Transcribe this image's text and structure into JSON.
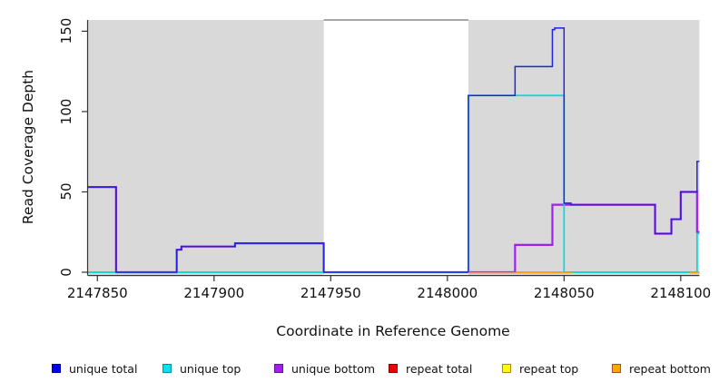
{
  "chart_data": {
    "type": "line",
    "subtype": "step-coverage-plot",
    "title": "",
    "xlabel": "Coordinate in Reference Genome",
    "ylabel": "Read Coverage Depth",
    "xlim": [
      2147846,
      2148108
    ],
    "ylim": [
      0,
      157
    ],
    "x_ticks": [
      2147850,
      2147900,
      2147950,
      2148000,
      2148050,
      2148100
    ],
    "y_ticks": [
      0,
      50,
      100,
      150
    ],
    "grid": false,
    "legend_position": "bottom",
    "plot_background": "#d9d9d9",
    "outer_background": "#ffffff",
    "axis_color": "#333333",
    "no_data_region": {
      "x_start": 2147947,
      "x_end": 2148009,
      "fill": "#ffffff",
      "top_line_color": "#8a8a8a"
    },
    "baseline": {
      "value": 0,
      "color": "#7dc87d"
    },
    "baseline_overlays": [
      {
        "color": "#e48a8a",
        "x_start": 2148009,
        "x_end": 2148029
      },
      {
        "color": "#ff9e1f",
        "x_start": 2148029,
        "x_end": 2148053
      },
      {
        "color": "#ff9e1f",
        "x_start": 2148104,
        "x_end": 2148108
      }
    ],
    "series": [
      {
        "name": "repeat total",
        "color": "#ee0000",
        "width": 1.2,
        "steps": [
          [
            2147846,
            0
          ]
        ]
      },
      {
        "name": "repeat top",
        "color": "#ffff00",
        "width": 1.2,
        "steps": [
          [
            2147846,
            0
          ]
        ]
      },
      {
        "name": "repeat bottom",
        "color": "#ffa500",
        "width": 1.2,
        "steps": [
          [
            2147846,
            0
          ]
        ]
      },
      {
        "name": "unique bottom",
        "color": "#a020f0",
        "width": 2.2,
        "steps": [
          [
            2147846,
            53
          ],
          [
            2147858,
            0
          ],
          [
            2147884,
            14
          ],
          [
            2147886,
            16
          ],
          [
            2147909,
            18
          ],
          [
            2147947,
            0
          ],
          [
            2148029,
            17
          ],
          [
            2148045,
            42
          ],
          [
            2148089,
            24
          ],
          [
            2148096,
            33
          ],
          [
            2148100,
            50
          ],
          [
            2148107,
            25
          ]
        ]
      },
      {
        "name": "unique top",
        "color": "#00dcdc",
        "width": 1.7,
        "steps": [
          [
            2147846,
            0
          ],
          [
            2148009,
            110
          ],
          [
            2148050,
            0
          ],
          [
            2148107,
            24
          ]
        ]
      },
      {
        "name": "unique total",
        "color": "#2222dd",
        "width": 1.5,
        "steps": [
          [
            2147846,
            53
          ],
          [
            2147858,
            0
          ],
          [
            2147884,
            14
          ],
          [
            2147886,
            16
          ],
          [
            2147909,
            18
          ],
          [
            2147947,
            0
          ],
          [
            2148009,
            110
          ],
          [
            2148029,
            128
          ],
          [
            2148045,
            151
          ],
          [
            2148046,
            152
          ],
          [
            2148050,
            43
          ],
          [
            2148053,
            42
          ],
          [
            2148089,
            24
          ],
          [
            2148096,
            33
          ],
          [
            2148100,
            50
          ],
          [
            2148107,
            69
          ]
        ]
      }
    ]
  },
  "legend": {
    "items": [
      {
        "label": "unique total",
        "color": "#0000ee",
        "border": "#0000a0"
      },
      {
        "label": "unique top",
        "color": "#00e5ee",
        "border": "#008b9e"
      },
      {
        "label": "unique bottom",
        "color": "#a020f0",
        "border": "#6a0fa0"
      },
      {
        "label": "repeat total",
        "color": "#ee0000",
        "border": "#8b0000"
      },
      {
        "label": "repeat top",
        "color": "#ffff00",
        "border": "#b8860b"
      },
      {
        "label": "repeat bottom",
        "color": "#ffa500",
        "border": "#a0522d"
      }
    ]
  }
}
